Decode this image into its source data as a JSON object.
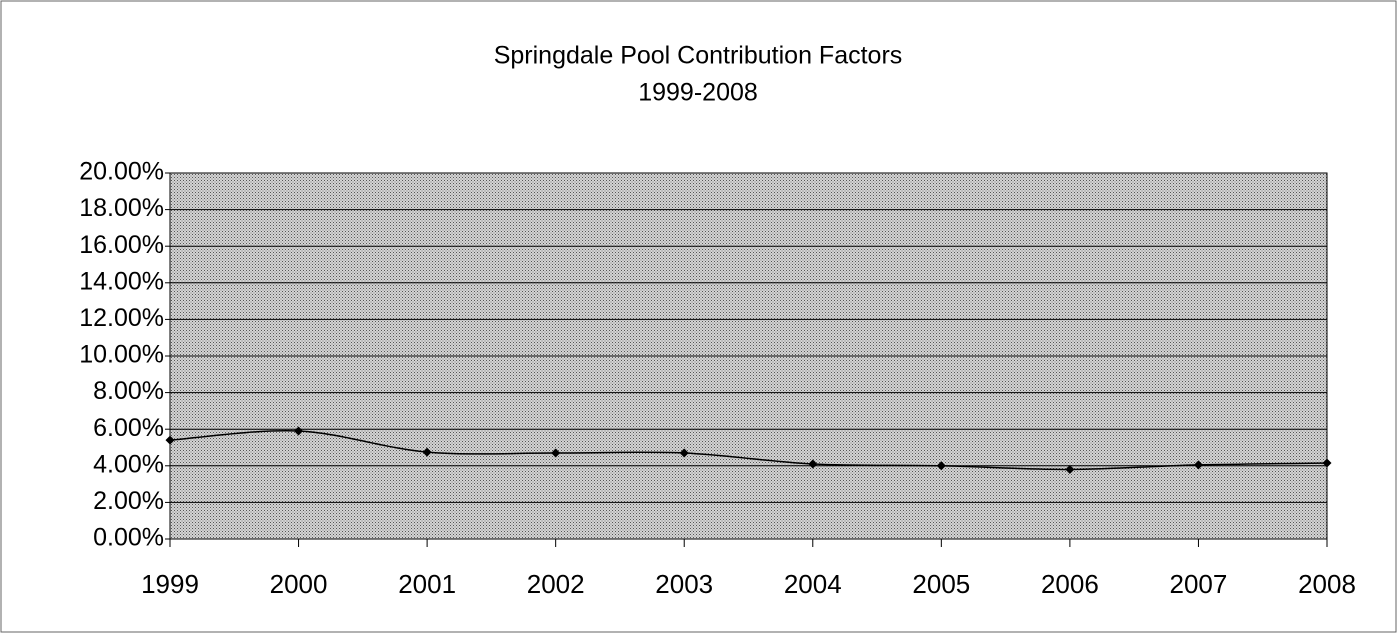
{
  "chart_data": {
    "type": "line",
    "title": "Springdale Pool Contribution Factors",
    "subtitle": "1999-2008",
    "categories": [
      "1999",
      "2000",
      "2001",
      "2002",
      "2003",
      "2004",
      "2005",
      "2006",
      "2007",
      "2008"
    ],
    "values": [
      5.4,
      5.9,
      4.75,
      4.7,
      4.7,
      4.1,
      4.0,
      3.8,
      4.05,
      4.15
    ],
    "color": "#000000",
    "ylim": [
      0,
      20
    ],
    "yticks": [
      {
        "value": 0,
        "label": "0.00%"
      },
      {
        "value": 2,
        "label": "2.00%"
      },
      {
        "value": 4,
        "label": "4.00%"
      },
      {
        "value": 6,
        "label": "6.00%"
      },
      {
        "value": 8,
        "label": "8.00%"
      },
      {
        "value": 10,
        "label": "10.00%"
      },
      {
        "value": 12,
        "label": "12.00%"
      },
      {
        "value": 14,
        "label": "14.00%"
      },
      {
        "value": 16,
        "label": "16.00%"
      },
      {
        "value": 18,
        "label": "18.00%"
      },
      {
        "value": 20,
        "label": "20.00%"
      }
    ],
    "grid": true,
    "smooth": true
  }
}
